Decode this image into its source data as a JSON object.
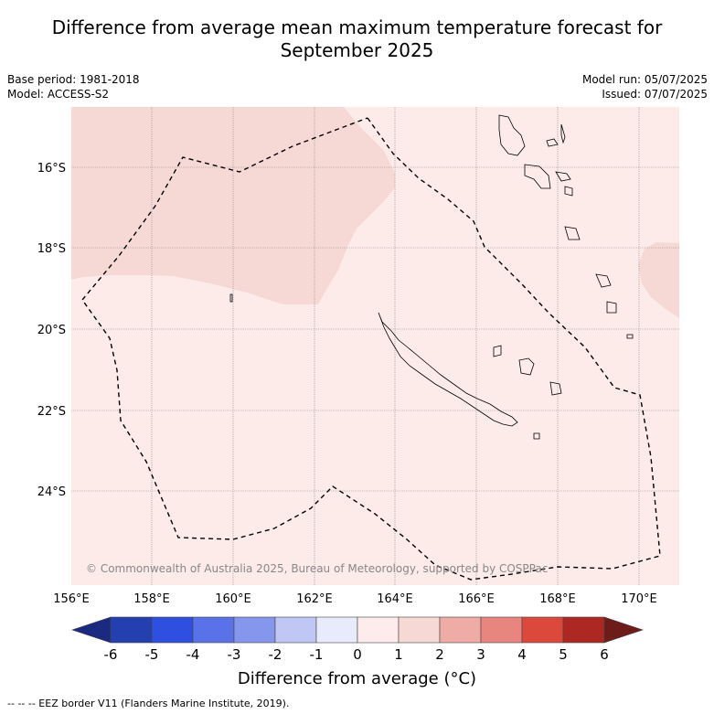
{
  "title_line1": "Difference from average mean maximum temperature forecast for",
  "title_line2": "September 2025",
  "base_period": "Base period: 1981-2018",
  "model": "Model: ACCESS-S2",
  "model_run": "Model run: 05/07/2025",
  "issued": "Issued: 07/07/2025",
  "map": {
    "lon_ticks": [
      "156°E",
      "158°E",
      "160°E",
      "162°E",
      "164°E",
      "166°E",
      "168°E",
      "170°E"
    ],
    "lat_ticks": [
      "16°S",
      "18°S",
      "20°S",
      "22°S",
      "24°S"
    ],
    "copyright": "© Commonwealth of Australia 2025, Bureau of Meteorology, supported by COSPPac",
    "colors": {
      "anomaly_0_1": "#fcebe9",
      "anomaly_1_2": "#f6d8d5",
      "eez_border": "#000000",
      "grid": "#888888"
    }
  },
  "colorbar": {
    "labels": [
      "-6",
      "-5",
      "-4",
      "-3",
      "-2",
      "-1",
      "0",
      "1",
      "2",
      "3",
      "4",
      "5",
      "6"
    ],
    "colors": [
      "#1b2a80",
      "#2440b0",
      "#2f4fe0",
      "#5a72e8",
      "#8597ec",
      "#c0c7f4",
      "#e8ebfb",
      "#fdeceb",
      "#f6d8d5",
      "#efaba6",
      "#e8857e",
      "#dc483c",
      "#ad2823",
      "#6e1c1a"
    ],
    "title": "Difference from average (",
    "unit": "°C)"
  },
  "footer": "--  --  -- EEZ border V11 (Flanders Marine Institute, 2019)."
}
